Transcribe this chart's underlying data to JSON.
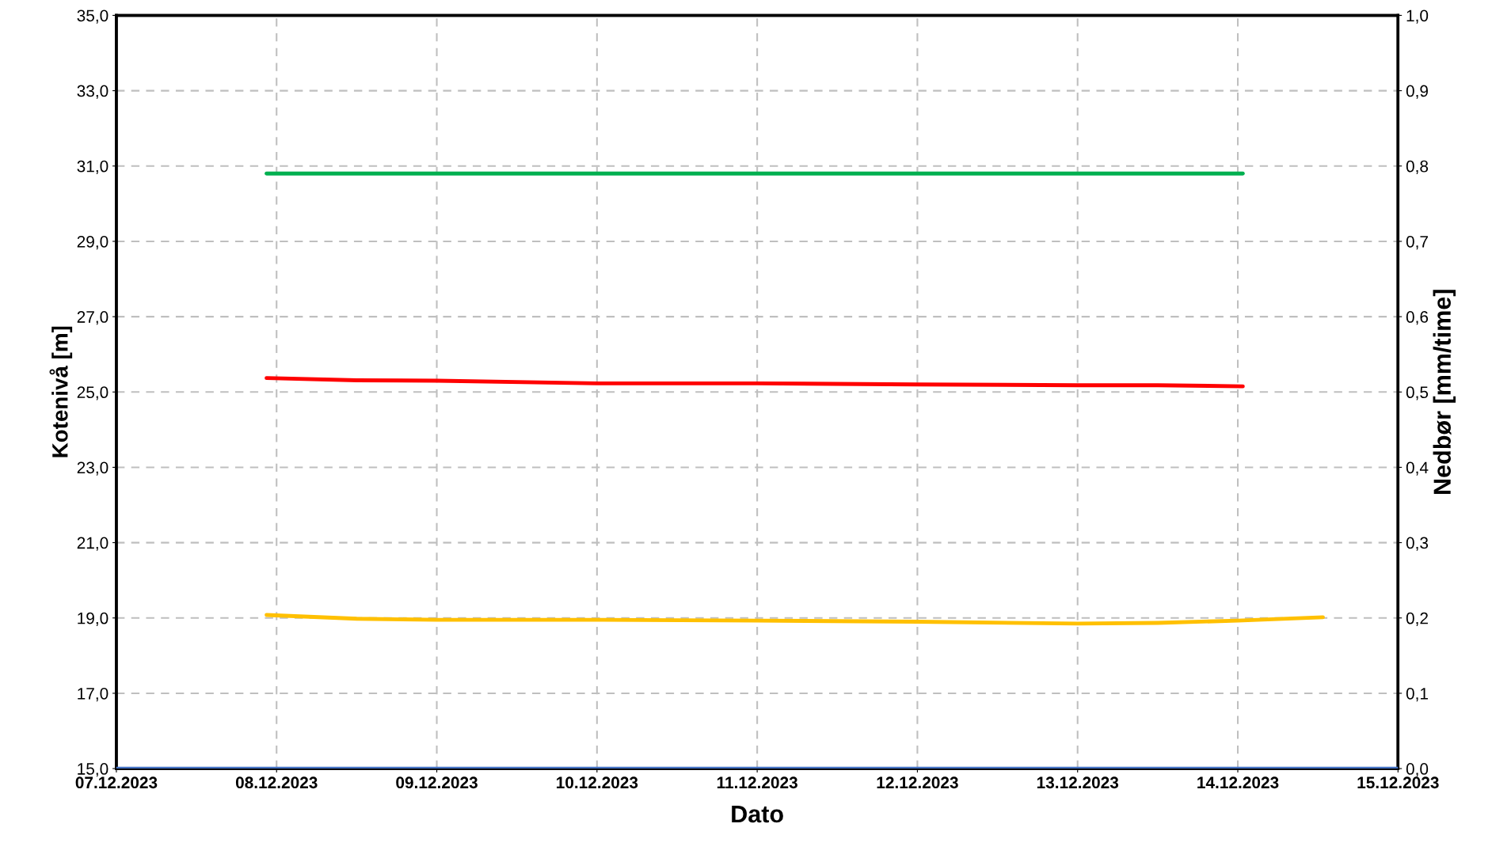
{
  "chart_data": {
    "type": "line",
    "xlabel": "Dato",
    "ylabel": "Kotenivå [m]",
    "y2label": "Nedbør [mm/time]",
    "xlim": [
      "2023-12-07",
      "2023-12-15"
    ],
    "xticks": [
      {
        "value": "2023-12-07",
        "label": "07.12.2023"
      },
      {
        "value": "2023-12-08",
        "label": "08.12.2023"
      },
      {
        "value": "2023-12-09",
        "label": "09.12.2023"
      },
      {
        "value": "2023-12-10",
        "label": "10.12.2023"
      },
      {
        "value": "2023-12-11",
        "label": "11.12.2023"
      },
      {
        "value": "2023-12-12",
        "label": "12.12.2023"
      },
      {
        "value": "2023-12-13",
        "label": "13.12.2023"
      },
      {
        "value": "2023-12-14",
        "label": "14.12.2023"
      },
      {
        "value": "2023-12-15",
        "label": "15.12.2023"
      }
    ],
    "ylim": [
      15,
      35
    ],
    "yticks": [
      {
        "value": 15,
        "label": "15,0"
      },
      {
        "value": 17,
        "label": "17,0"
      },
      {
        "value": 19,
        "label": "19,0"
      },
      {
        "value": 21,
        "label": "21,0"
      },
      {
        "value": 23,
        "label": "23,0"
      },
      {
        "value": 25,
        "label": "25,0"
      },
      {
        "value": 27,
        "label": "27,0"
      },
      {
        "value": 29,
        "label": "29,0"
      },
      {
        "value": 31,
        "label": "31,0"
      },
      {
        "value": 33,
        "label": "33,0"
      },
      {
        "value": 35,
        "label": "35,0"
      }
    ],
    "y2lim": [
      0,
      1
    ],
    "y2ticks": [
      {
        "value": 0,
        "label": "0,0"
      },
      {
        "value": 0.1,
        "label": "0,1"
      },
      {
        "value": 0.2,
        "label": "0,2"
      },
      {
        "value": 0.3,
        "label": "0,3"
      },
      {
        "value": 0.4,
        "label": "0,4"
      },
      {
        "value": 0.5,
        "label": "0,5"
      },
      {
        "value": 0.6,
        "label": "0,6"
      },
      {
        "value": 0.7,
        "label": "0,7"
      },
      {
        "value": 0.8,
        "label": "0,8"
      },
      {
        "value": 0.9,
        "label": "0,9"
      },
      {
        "value": 1,
        "label": "1,0"
      }
    ],
    "grid": true,
    "series": [
      {
        "color": "#00b050",
        "x": [
          "2023-12-07T22:30",
          "2023-12-14T00:45"
        ],
        "values": [
          30.8,
          30.8
        ]
      },
      {
        "color": "#ff0000",
        "x": [
          "2023-12-07T22:30",
          "2023-12-08T12:00",
          "2023-12-09T00:00",
          "2023-12-10T00:00",
          "2023-12-11T00:00",
          "2023-12-12T00:00",
          "2023-12-13T00:00",
          "2023-12-13T12:00",
          "2023-12-14T00:45"
        ],
        "values": [
          25.37,
          25.31,
          25.3,
          25.23,
          25.23,
          25.2,
          25.18,
          25.18,
          25.15
        ]
      },
      {
        "color": "#ffc000",
        "x": [
          "2023-12-07T22:30",
          "2023-12-08T12:00",
          "2023-12-09T00:00",
          "2023-12-10T00:00",
          "2023-12-11T00:00",
          "2023-12-12T00:00",
          "2023-12-13T00:00",
          "2023-12-13T12:00",
          "2023-12-14T00:00",
          "2023-12-14T12:45"
        ],
        "values": [
          19.08,
          18.98,
          18.95,
          18.95,
          18.93,
          18.9,
          18.85,
          18.87,
          18.93,
          19.02
        ]
      },
      {
        "color": "#4472c4",
        "axis": "y2",
        "x": [
          "2023-12-07",
          "2023-12-15"
        ],
        "values": [
          0,
          0
        ]
      }
    ]
  }
}
